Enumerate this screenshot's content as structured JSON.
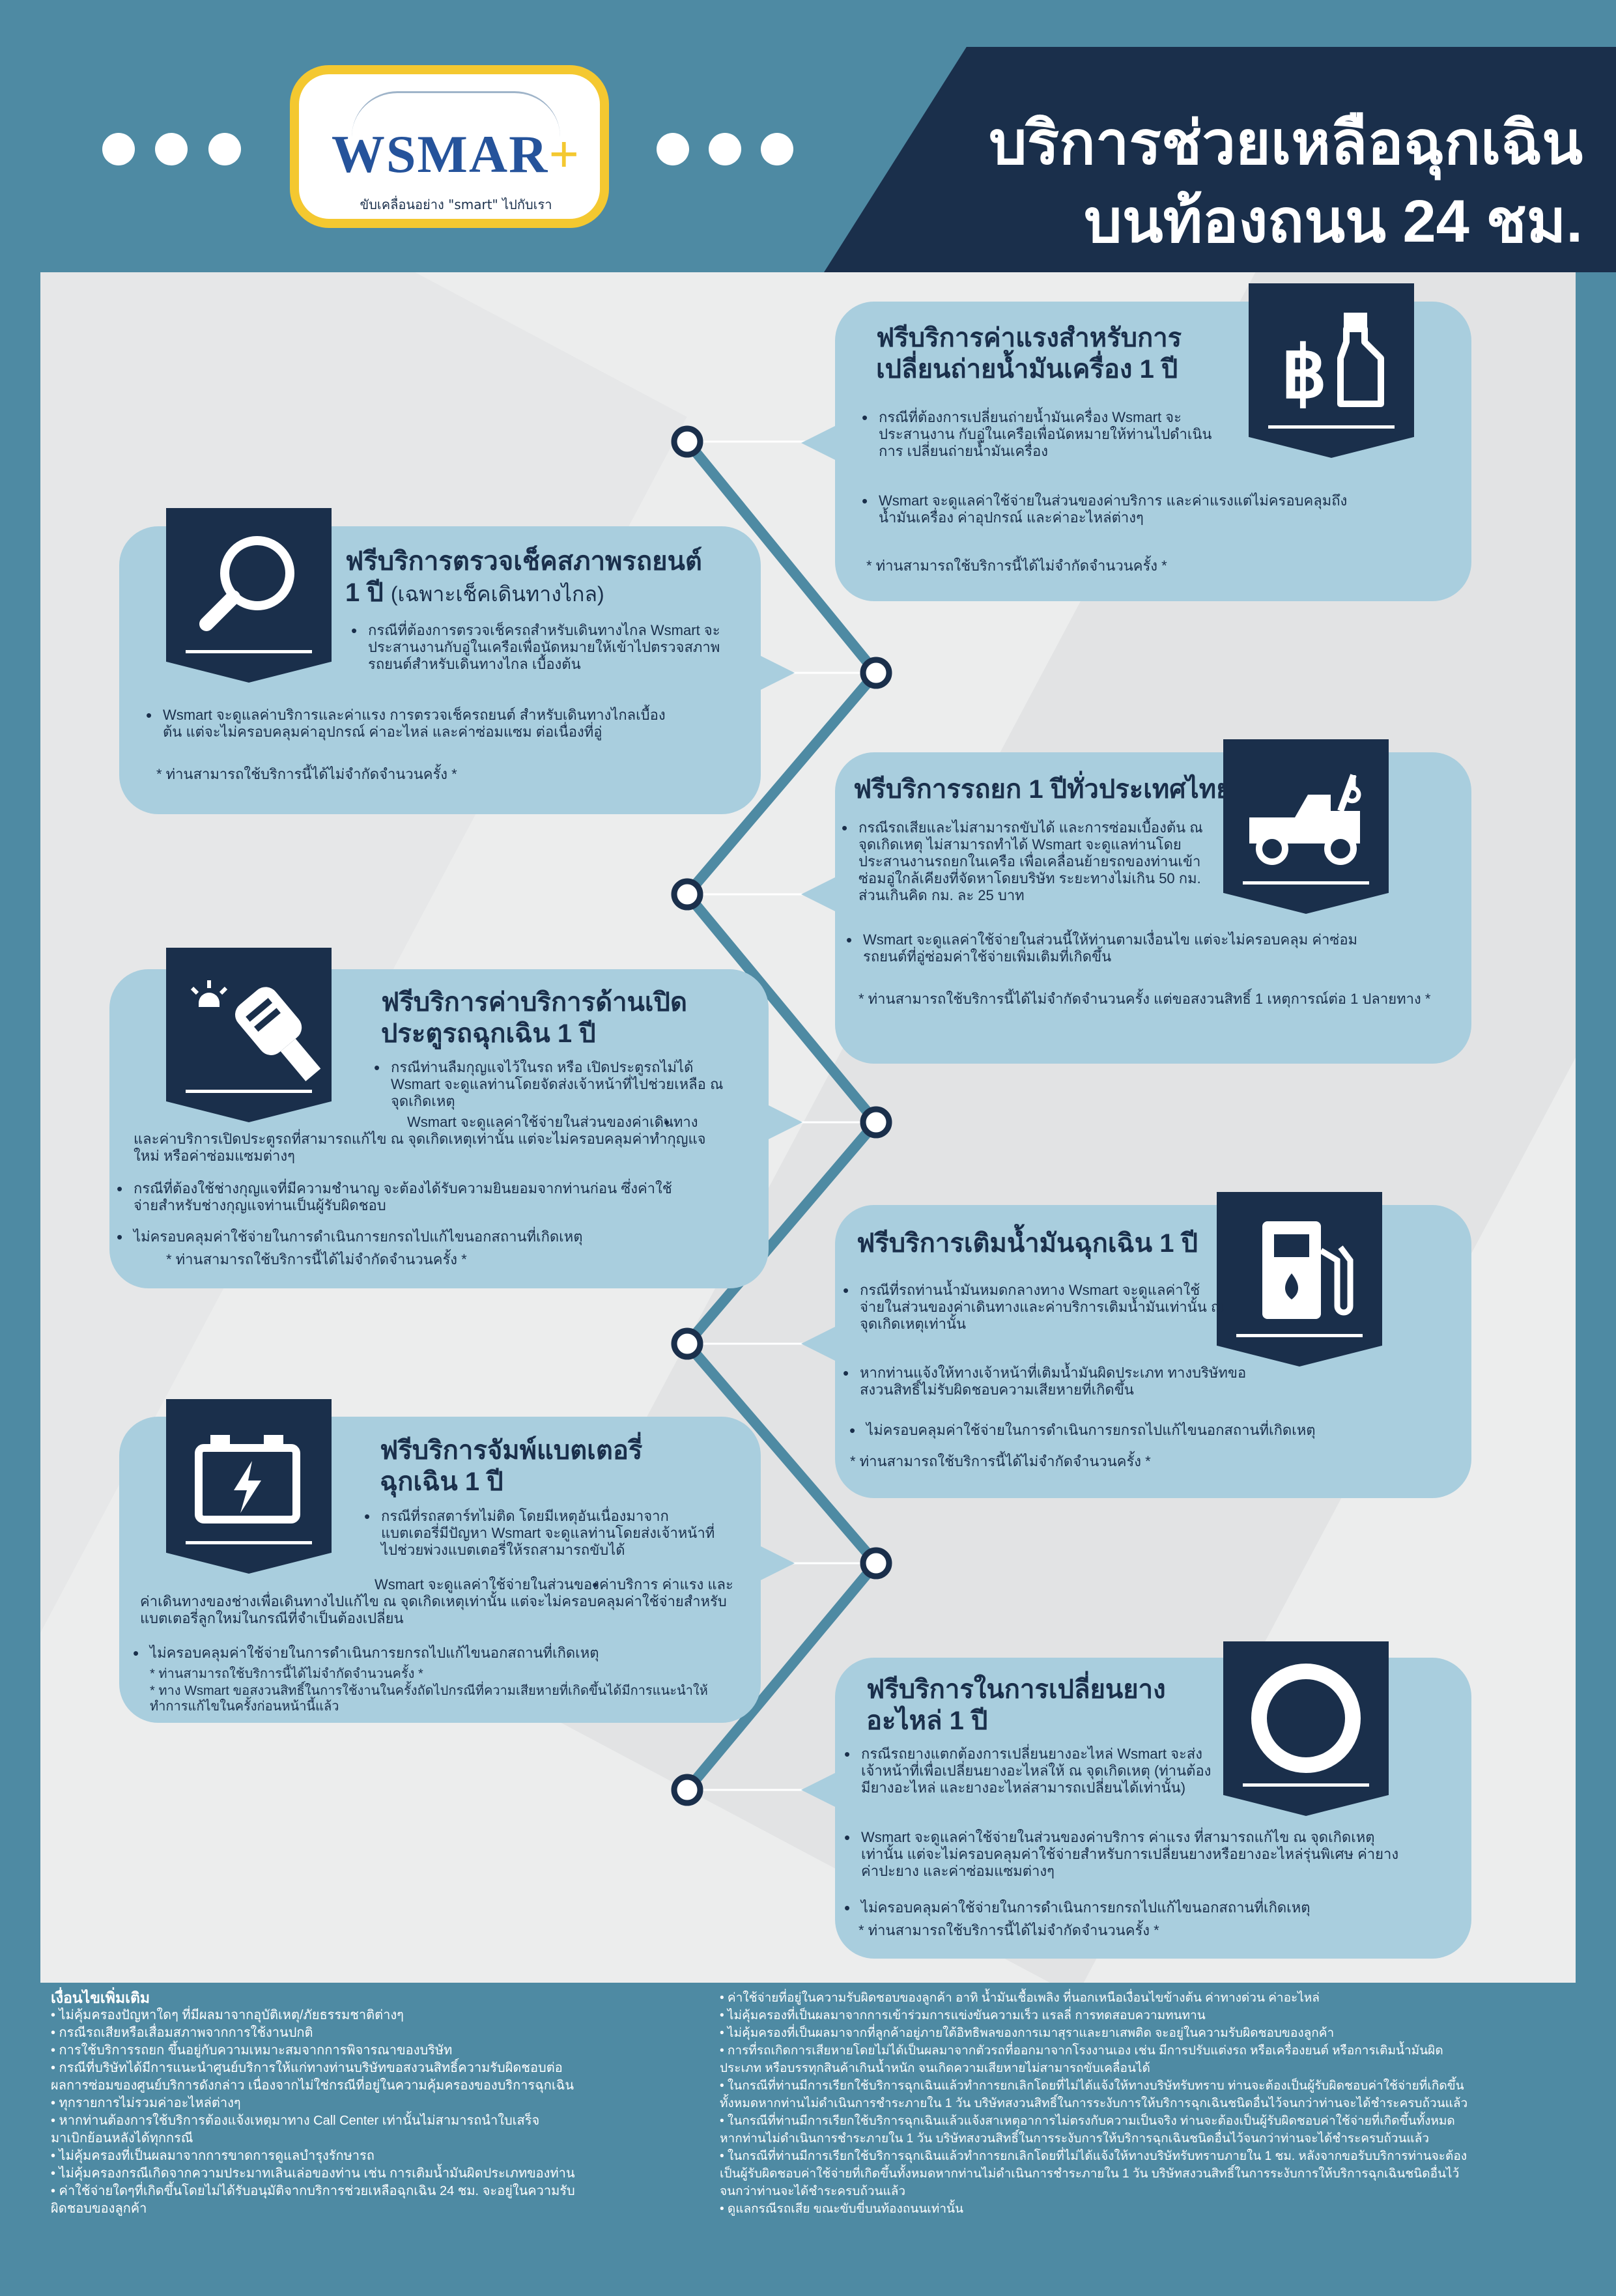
{
  "header": {
    "title_line1": "บริการช่วยเหลือฉุกเฉิน",
    "title_line2": "บนท้องถนน 24 ชม."
  },
  "logo": {
    "brand": "WSMAR",
    "plus": "+",
    "slogan": "ขับเคลื่อนอย่าง \"smart\" ไปกับเรา"
  },
  "colors": {
    "background": "#4e8aa3",
    "navy": "#1a2f4b",
    "card": "#a9cede",
    "accent_yellow": "#f4c830"
  },
  "services": [
    {
      "icon": "baht-oil-bottle-icon",
      "title_line1": "ฟรีบริการค่าแรงสำหรับการ",
      "title_line2": "เปลี่ยนถ่ายน้ำมันเครื่อง 1 ปี",
      "bullets": [
        "กรณีที่ต้องการเปลี่ยนถ่ายน้ำมันเครื่อง Wsmart จะประสานงาน กับอู่ในเครือเพื่อนัดหมายให้ท่านไปดำเนินการ เปลี่ยนถ่ายน้ำมันเครื่อง",
        "Wsmart จะดูแลค่าใช้จ่ายในส่วนของค่าบริการ และค่าแรงแต่ไม่ครอบคลุมถึงน้ำมันเครื่อง ค่าอุปกรณ์ และค่าอะไหล่ต่างๆ"
      ],
      "note": "* ท่านสามารถใช้บริการนี้ได้ไม่จำกัดจำนวนครั้ง *"
    },
    {
      "icon": "magnifier-icon",
      "title_line1": "ฟรีบริการตรวจเช็คสภาพรถยนต์",
      "title_line2": "1 ปี",
      "title_sub": "(เฉพาะเช็คเดินทางไกล)",
      "bullets": [
        "กรณีที่ต้องการตรวจเช็ครถสำหรับเดินทางไกล Wsmart จะประสานงานกับอู่ในเครือเพื่อนัดหมายให้เข้าไปตรวจสภาพรถยนต์สำหรับเดินทางไกล เบื้องต้น",
        "Wsmart จะดูแลค่าบริการและค่าแรง การตรวจเช็ครถยนต์ สำหรับเดินทางไกลเบื้องต้น แต่จะไม่ครอบคลุมค่าอุปกรณ์ ค่าอะไหล่ และค่าซ่อมแซม ต่อเนื่องที่อู่"
      ],
      "note": "* ท่านสามารถใช้บริการนี้ได้ไม่จำกัดจำนวนครั้ง *"
    },
    {
      "icon": "tow-truck-icon",
      "title_line1": "ฟรีบริการรถยก 1 ปีทั่วประเทศไทย",
      "bullets": [
        "กรณีรถเสียและไม่สามารถขับได้ และการซ่อมเบื้องต้น ณ จุดเกิดเหตุ ไม่สามารถทำได้ Wsmart จะดูแลท่านโดยประสานงานรถยกในเครือ เพื่อเคลื่อนย้ายรถของท่านเข้าซ่อมอู่ใกล้เคียงที่จัดหาโดยบริษัท ระยะทางไม่เกิน 50 กม. ส่วนเกินคิด กม. ละ 25 บาท",
        "Wsmart จะดูแลค่าใช้จ่ายในส่วนนี้ให้ท่านตามเงื่อนไข แต่จะไม่ครอบคลุม ค่าซ่อมรถยนต์ที่อู่ซ่อมค่าใช้จ่ายเพิ่มเติมที่เกิดขึ้น"
      ],
      "note": "* ท่านสามารถใช้บริการนี้ได้ไม่จำกัดจำนวนครั้ง แต่ขอสงวนสิทธิ์ 1 เหตุการณ์ต่อ 1 ปลายทาง *"
    },
    {
      "icon": "car-key-siren-icon",
      "title_line1": "ฟรีบริการค่าบริการด้านเปิด",
      "title_line2": "ประตูรถฉุกเฉิน 1 ปี",
      "bullets": [
        "กรณีท่านลืมกุญแจไว้ในรถ หรือ เปิดประตูรถไม่ได้ Wsmart จะดูแลท่านโดยจัดส่งเจ้าหน้าที่ไปช่วยเหลือ ณ จุดเกิดเหตุ",
        "Wsmart จะดูแลค่าใช้จ่ายในส่วนของค่าเดินทางและค่าบริการเปิดประตูรถที่สามารถแก้ไข ณ จุดเกิดเหตุเท่านั้น แต่จะไม่ครอบคลุมค่าทำกุญแจใหม่ หรือค่าซ่อมแซมต่างๆ",
        "กรณีที่ต้องใช้ช่างกุญแจที่มีความชำนาญ จะต้องได้รับความยินยอมจากท่านก่อน ซึ่งค่าใช้จ่ายสำหรับช่างกุญแจท่านเป็นผู้รับผิดชอบ",
        "ไม่ครอบคลุมค่าใช้จ่ายในการดำเนินการยกรถไปแก้ไขนอกสถานที่เกิดเหตุ"
      ],
      "note": "* ท่านสามารถใช้บริการนี้ได้ไม่จำกัดจำนวนครั้ง *"
    },
    {
      "icon": "fuel-pump-icon",
      "title_line1": "ฟรีบริการเติมน้ำมันฉุกเฉิน 1 ปี",
      "bullets": [
        "กรณีที่รถท่านน้ำมันหมดกลางทาง Wsmart จะดูแลค่าใช้จ่ายในส่วนของค่าเดินทางและค่าบริการเติมน้ำมันเท่านั้น ณ จุดเกิดเหตุเท่านั้น",
        "หากท่านแจ้งให้ทางเจ้าหน้าที่เติมน้ำมันผิดประเภท ทางบริษัทขอสงวนสิทธิ์ไม่รับผิดชอบความเสียหายที่เกิดขึ้น",
        "ไม่ครอบคลุมค่าใช้จ่ายในการดำเนินการยกรถไปแก้ไขนอกสถานที่เกิดเหตุ"
      ],
      "note": "* ท่านสามารถใช้บริการนี้ได้ไม่จำกัดจำนวนครั้ง *"
    },
    {
      "icon": "battery-icon",
      "title_line1": "ฟรีบริการจัมพ์แบตเตอรี่",
      "title_line2": "ฉุกเฉิน 1 ปี",
      "bullets": [
        "กรณีที่รถสตาร์ทไม่ติด โดยมีเหตุอันเนื่องมาจากแบตเตอรี่มีปัญหา Wsmart จะดูแลท่านโดยส่งเจ้าหน้าที่ไปช่วยพ่วงแบตเตอรี่ให้รถสามารถขับได้",
        "Wsmart จะดูแลค่าใช้จ่ายในส่วนของค่าบริการ ค่าแรง และค่าเดินทางของช่างเพื่อเดินทางไปแก้ไข ณ จุดเกิดเหตุเท่านั้น แต่จะไม่ครอบคลุมค่าใช้จ่ายสำหรับแบตเตอรี่ลูกใหม่ในกรณีที่จำเป็นต้องเปลี่ยน",
        "ไม่ครอบคลุมค่าใช้จ่ายในการดำเนินการยกรถไปแก้ไขนอกสถานที่เกิดเหตุ"
      ],
      "note": "* ท่านสามารถใช้บริการนี้ได้ไม่จำกัดจำนวนครั้ง *",
      "note2": "* ทาง Wsmart ขอสงวนสิทธิ์ในการใช้งานในครั้งถัดไปกรณีที่ความเสียหายที่เกิดขึ้นได้มีการแนะนำให้ทำการแก้ไขในครั้งก่อนหน้านี้แล้ว"
    },
    {
      "icon": "tire-icon",
      "title_line1": "ฟรีบริการในการเปลี่ยนยาง",
      "title_line2": "อะไหล่ 1 ปี",
      "bullets": [
        "กรณีรถยางแตกต้องการเปลี่ยนยางอะไหล่ Wsmart จะส่งเจ้าหน้าที่เพื่อเปลี่ยนยางอะไหล่ให้ ณ จุดเกิดเหตุ (ท่านต้องมียางอะไหล่ และยางอะไหล่สามารถเปลี่ยนได้เท่านั้น)",
        "Wsmart จะดูแลค่าใช้จ่ายในส่วนของค่าบริการ ค่าแรง ที่สามารถแก้ไข ณ จุดเกิดเหตุเท่านั้น แต่จะไม่ครอบคลุมค่าใช้จ่ายสำหรับการเปลี่ยนยางหรือยางอะไหล่รุ่นพิเศษ ค่ายาง ค่าปะยาง และค่าซ่อมแซมต่างๆ",
        "ไม่ครอบคลุมค่าใช้จ่ายในการดำเนินการยกรถไปแก้ไขนอกสถานที่เกิดเหตุ"
      ],
      "note": "* ท่านสามารถใช้บริการนี้ได้ไม่จำกัดจำนวนครั้ง *"
    }
  ],
  "footer": {
    "heading": "เงื่อนไขเพิ่มเติม",
    "left": [
      "• ไม่คุ้มครองปัญหาใดๆ ที่มีผลมาจากอุบัติเหตุ/ภัยธรรมชาติต่างๆ",
      "• กรณีรถเสียหรือเสื่อมสภาพจากการใช้งานปกติ",
      "• การใช้บริการรถยก ขึ้นอยู่กับความเหมาะสมจากการพิจารณาของบริษัท",
      "• กรณีที่บริษัทได้มีการแนะนำศูนย์บริการให้แก่ทางท่านบริษัทขอสงวนสิทธิ์ความรับผิดชอบต่อ",
      "  ผลการซ่อมของศูนย์บริการดังกล่าว เนื่องจากไม่ใช่กรณีที่อยู่ในความคุ้มครองของบริการฉุกเฉิน",
      "• ทุกรายการไม่รวมค่าอะไหล่ต่างๆ",
      "• หากท่านต้องการใช้บริการต้องแจ้งเหตุมาทาง Call Center เท่านั้นไม่สามารถนำใบเสร็จ",
      "  มาเบิกย้อนหลังได้ทุกกรณี",
      "• ไม่คุ้มครองที่เป็นผลมาจากการขาดการดูแลบำรุงรักษารถ",
      "• ไม่คุ้มครองกรณีเกิดจากความประมาทเลินเล่อของท่าน เช่น การเติมน้ำมันผิดประเภทของท่าน",
      "• ค่าใช้จ่ายใดๆที่เกิดขึ้นโดยไม่ได้รับอนุมัติจากบริการช่วยเหลือฉุกเฉิน 24 ชม. จะอยู่ในความรับ",
      "  ผิดชอบของลูกค้า"
    ],
    "right": [
      "• ค่าใช้จ่ายที่อยู่ในความรับผิดชอบของลูกค้า อาทิ น้ำมันเชื้อเพลิง ที่นอกเหนือเงื่อนไขข้างต้น ค่าทางด่วน ค่าอะไหล่",
      "• ไม่คุ้มครองที่เป็นผลมาจากการเข้าร่วมการแข่งขันความเร็ว แรลลี่ การทดสอบความทนทาน",
      "• ไม่คุ้มครองที่เป็นผลมาจากที่ลูกค้าอยู่ภายใต้อิทธิพลของการเมาสุราและยาเสพติด จะอยู่ในความรับผิดชอบของลูกค้า",
      "• การที่รถเกิดการเสียหายโดยไม่ได้เป็นผลมาจากตัวรถที่ออกมาจากโรงงานเอง เช่น มีการปรับแต่งรถ หรือเครื่องยนต์ หรือการเติมน้ำมันผิด",
      "  ประเภท หรือบรรทุกสินค้าเกินน้ำหนัก จนเกิดความเสียหายไม่สามารถขับเคลื่อนได้",
      "• ในกรณีที่ท่านมีการเรียกใช้บริการฉุกเฉินแล้วทำการยกเลิกโดยที่ไม่ได้แจ้งให้ทางบริษัทรับทราบ ท่านจะต้องเป็นผู้รับผิดชอบค่าใช้จ่ายที่เกิดขึ้น",
      "  ทั้งหมดหากท่านไม่ดำเนินการชำระภายใน 1 วัน บริษัทสงวนสิทธิ์ในการระงับการให้บริการฉุกเฉินชนิดอื่นไว้จนกว่าท่านจะได้ชำระครบถ้วนแล้ว",
      "• ในกรณีที่ท่านมีการเรียกใช้บริการฉุกเฉินแล้วแจ้งสาเหตุอาการไม่ตรงกับความเป็นจริง ท่านจะต้องเป็นผู้รับผิดชอบค่าใช้จ่ายที่เกิดขึ้นทั้งหมด",
      "  หากท่านไม่ดำเนินการชำระภายใน 1 วัน บริษัทสงวนสิทธิ์ในการระงับการให้บริการฉุกเฉินชนิดอื่นไว้จนกว่าท่านจะได้ชำระครบถ้วนแล้ว",
      "• ในกรณีที่ท่านมีการเรียกใช้บริการฉุกเฉินแล้วทำการยกเลิกโดยที่ไม่ได้แจ้งให้ทางบริษัทรับทราบภายใน 1 ชม. หลังจากขอรับบริการท่านจะต้อง",
      "  เป็นผู้รับผิดชอบค่าใช้จ่ายที่เกิดขึ้นทั้งหมดหากท่านไม่ดำเนินการชำระภายใน 1 วัน บริษัทสงวนสิทธิ์ในการระงับการให้บริการฉุกเฉินชนิดอื่นไว้",
      "  จนกว่าท่านจะได้ชำระครบถ้วนแล้ว",
      "• ดูแลกรณีรถเสีย ขณะขับขี่บนท้องถนนเท่านั้น"
    ]
  }
}
